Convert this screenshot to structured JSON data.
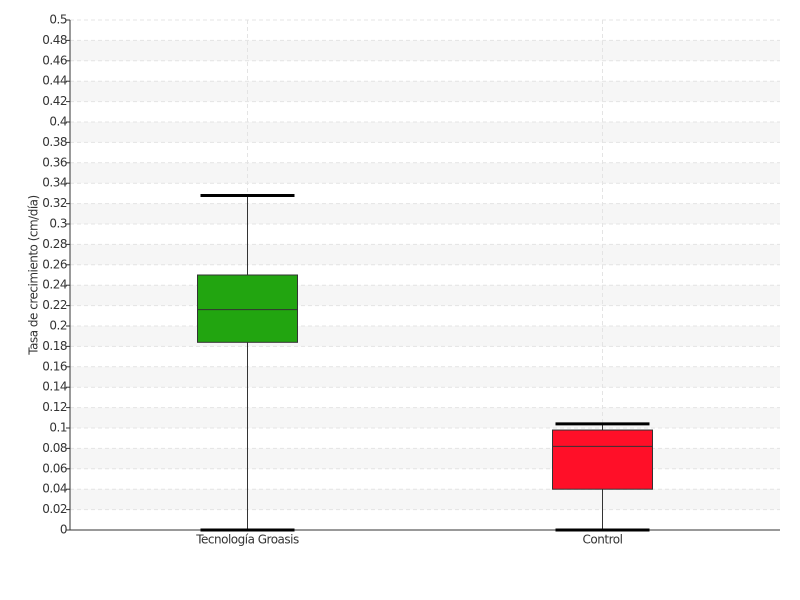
{
  "chart_data": {
    "type": "box",
    "y_label": "Tasa de crecimiento (cm/día)",
    "categories": [
      "Tecnología Groasis",
      "Control"
    ],
    "colors": [
      "#22a510",
      "#ff0f28"
    ],
    "values": [
      {
        "min": 0,
        "q1": 0.184,
        "median": 0.216,
        "q3": 0.25,
        "max": 0.328
      },
      {
        "min": 0,
        "q1": 0.04,
        "median": 0.082,
        "q3": 0.098,
        "max": 0.104
      }
    ],
    "ylim": [
      0,
      0.5
    ],
    "yticks": [
      0,
      0.02,
      0.04,
      0.06,
      0.08,
      0.1,
      0.12,
      0.14,
      0.16,
      0.18,
      0.2,
      0.22,
      0.24,
      0.26,
      0.28,
      0.3,
      0.32,
      0.34,
      0.36,
      0.38,
      0.4,
      0.42,
      0.44,
      0.46,
      0.48,
      0.5
    ],
    "grid": true
  }
}
